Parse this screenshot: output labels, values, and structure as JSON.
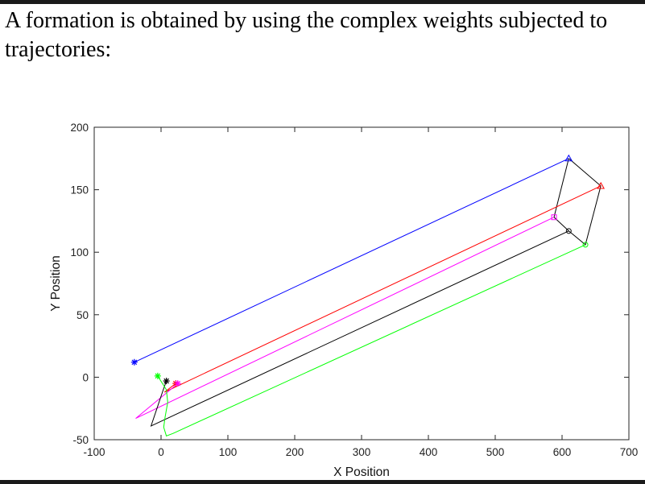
{
  "heading": "A formation is obtained by using the complex weights subjected to trajectories:",
  "chart_data": {
    "type": "line",
    "title": "",
    "xlabel": "X Position",
    "ylabel": "Y Position",
    "xlim": [
      -100,
      700
    ],
    "ylim": [
      -50,
      200
    ],
    "xticks": [
      -100,
      0,
      100,
      200,
      300,
      400,
      500,
      600,
      700
    ],
    "yticks": [
      -50,
      0,
      50,
      100,
      150,
      200
    ],
    "grid": false,
    "legend": "none",
    "series": [
      {
        "color": "#0000ff",
        "start_marker": "asterisk",
        "end_marker": "triangle",
        "x": [
          -40,
          610
        ],
        "y": [
          12,
          175
        ]
      },
      {
        "color": "#ff0000",
        "start_marker": "asterisk",
        "end_marker": "triangle",
        "x": [
          22,
          5,
          658
        ],
        "y": [
          -5,
          -12,
          153
        ]
      },
      {
        "color": "#ff00ff",
        "start_marker": "asterisk",
        "end_marker": "square",
        "x": [
          25,
          -38,
          588
        ],
        "y": [
          -5,
          -33,
          128
        ]
      },
      {
        "color": "#000000",
        "start_marker": "asterisk",
        "end_marker": "circle",
        "x": [
          8,
          2,
          -15,
          610
        ],
        "y": [
          -3,
          -12,
          -39,
          117
        ]
      },
      {
        "color": "#00ff00",
        "start_marker": "asterisk",
        "end_marker": "circle",
        "x": [
          -5,
          8,
          10,
          6,
          4,
          8,
          18,
          635
        ],
        "y": [
          1,
          -10,
          -20,
          -32,
          -40,
          -47,
          -45,
          106
        ]
      }
    ],
    "formation_links": [
      {
        "color": "#000000",
        "x": [
          610,
          658,
          635,
          610,
          588,
          610
        ],
        "y": [
          175,
          153,
          106,
          117,
          128,
          175
        ]
      }
    ]
  }
}
